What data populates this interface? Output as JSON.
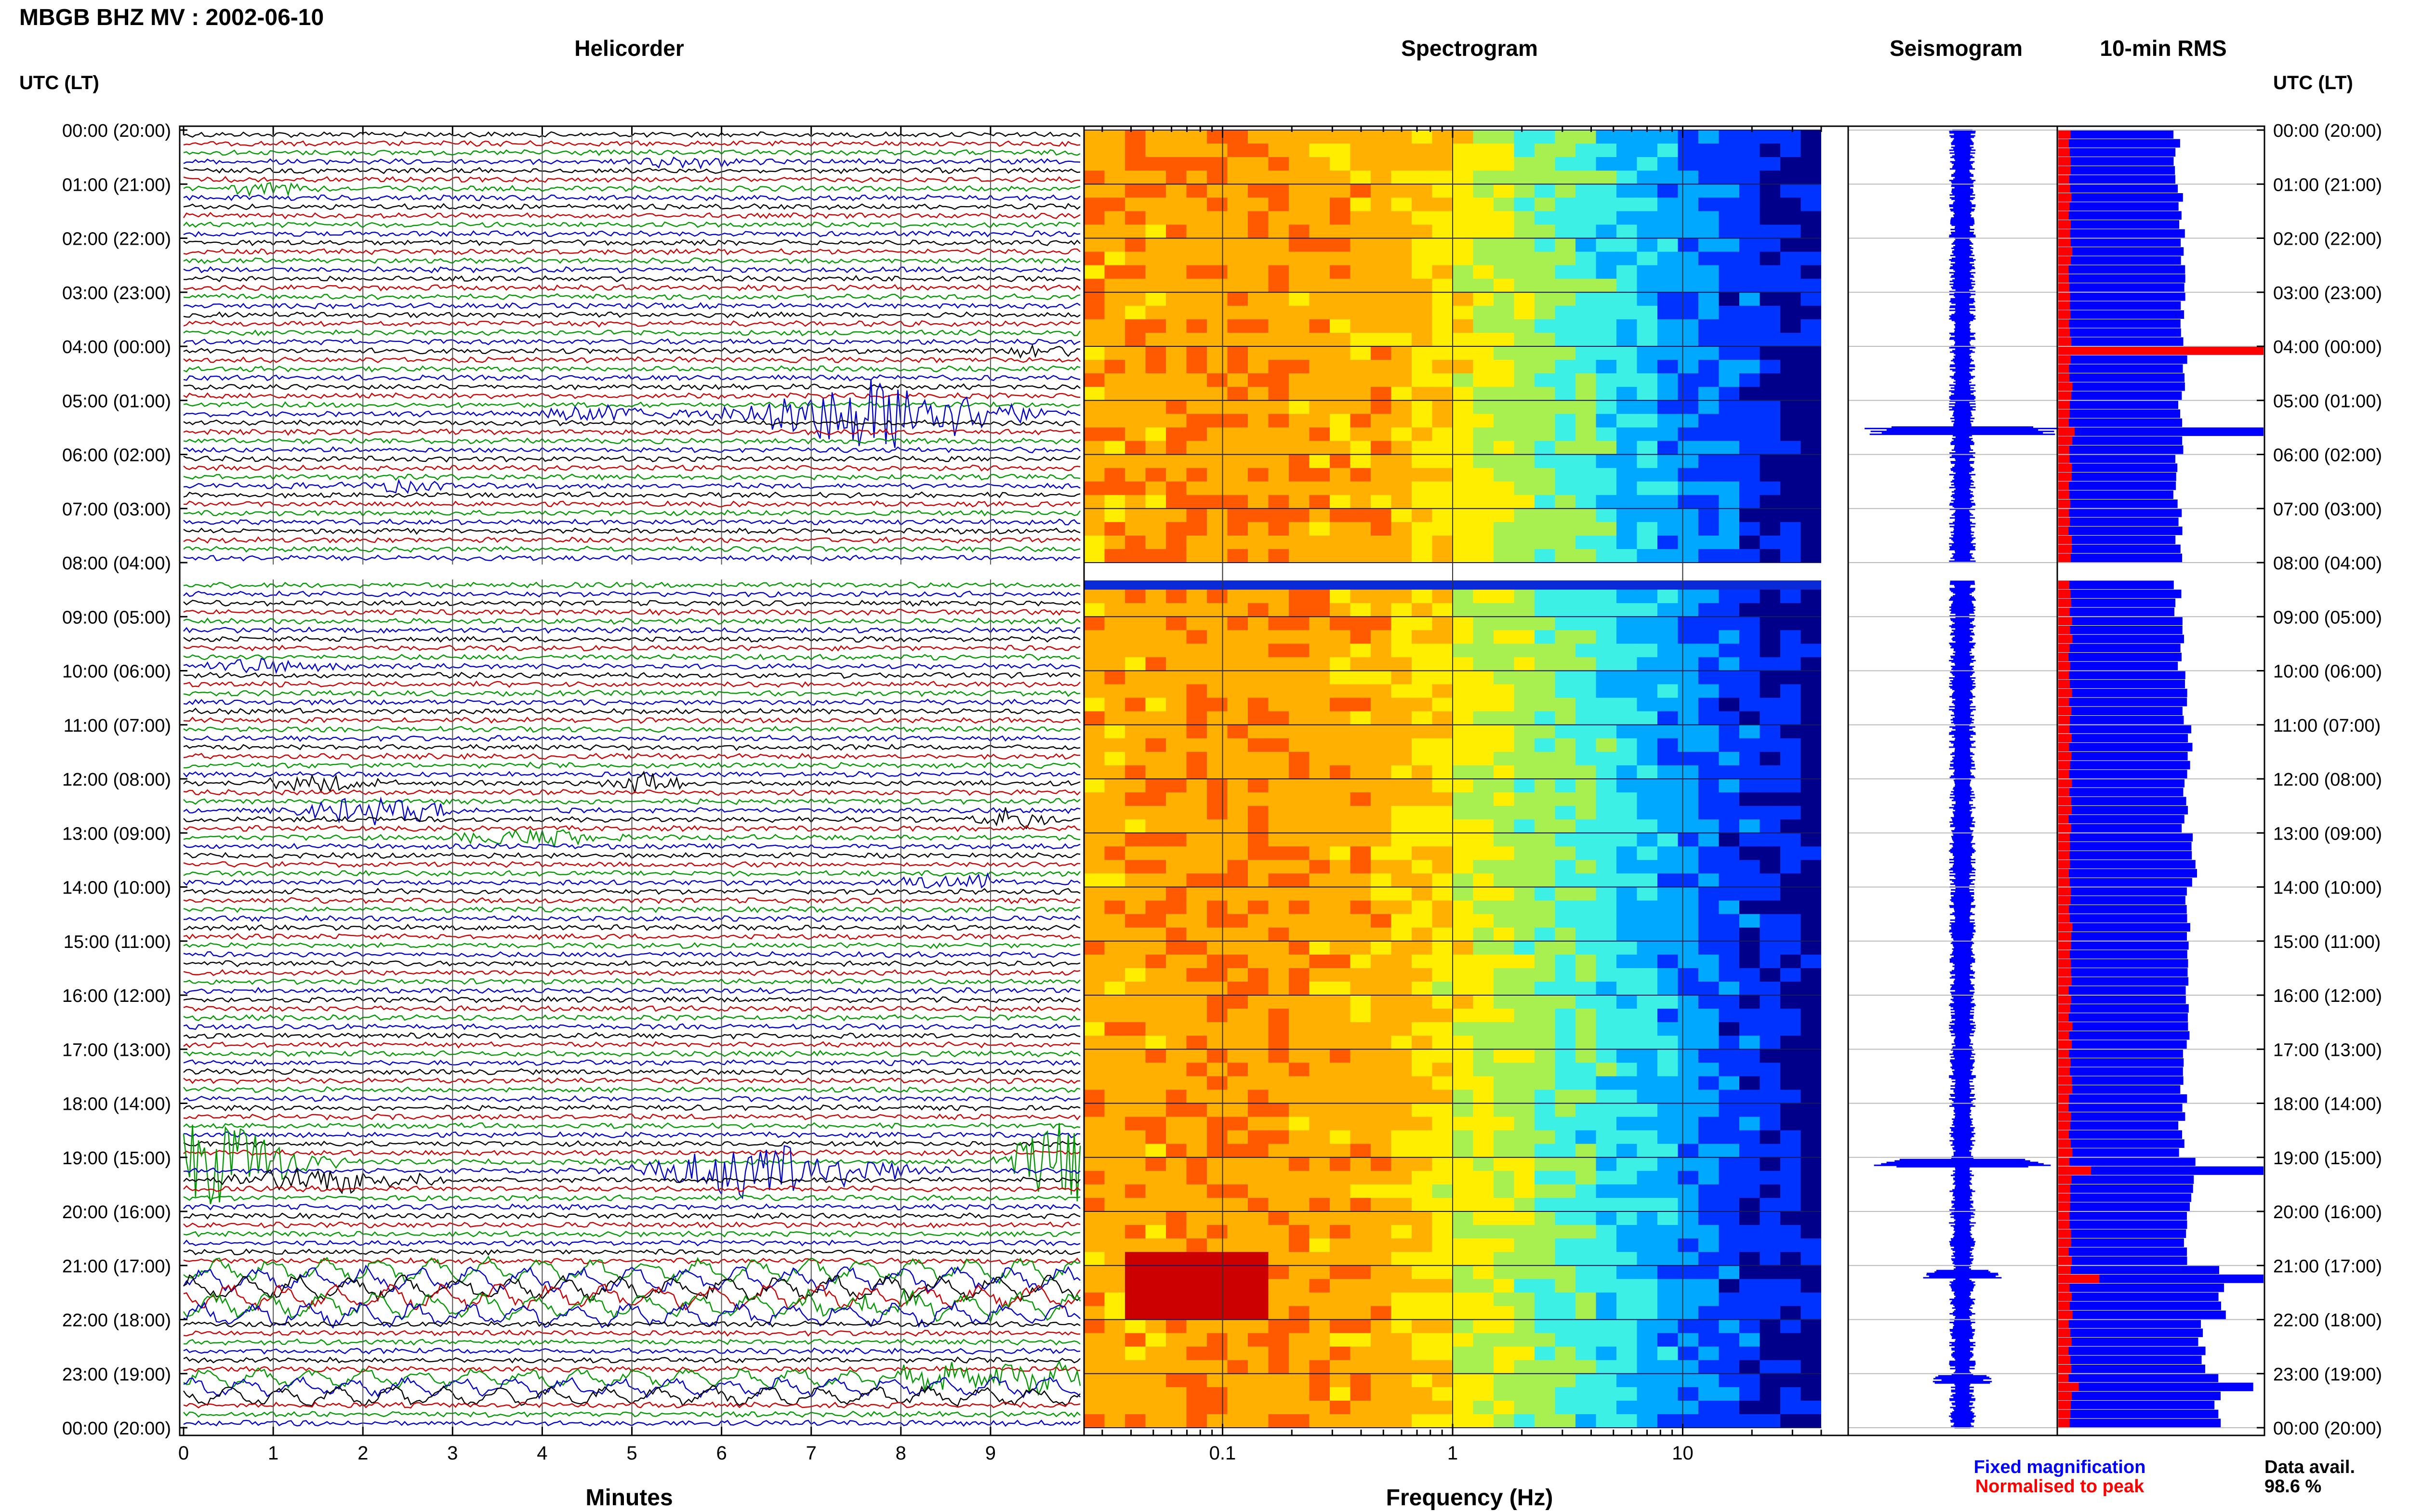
{
  "chart_data": {
    "type": "composite",
    "title": "MBGB BHZ MV : 2002-06-10",
    "time_axis_label": "UTC (LT)",
    "time_ticks": [
      "00:00 (20:00)",
      "01:00 (21:00)",
      "02:00 (22:00)",
      "03:00 (23:00)",
      "04:00 (00:00)",
      "05:00 (01:00)",
      "06:00 (02:00)",
      "07:00 (03:00)",
      "08:00 (04:00)",
      "09:00 (05:00)",
      "10:00 (06:00)",
      "11:00 (07:00)",
      "12:00 (08:00)",
      "13:00 (09:00)",
      "14:00 (10:00)",
      "15:00 (11:00)",
      "16:00 (12:00)",
      "17:00 (13:00)",
      "18:00 (14:00)",
      "19:00 (15:00)",
      "20:00 (16:00)",
      "21:00 (17:00)",
      "22:00 (18:00)",
      "23:00 (19:00)",
      "00:00 (20:00)"
    ],
    "data_gaps_hours": [
      [
        8.0,
        8.33
      ]
    ],
    "panels": {
      "helicorder": {
        "title": "Helicorder",
        "xlabel": "Minutes",
        "xticks": [
          "0",
          "1",
          "2",
          "3",
          "4",
          "5",
          "6",
          "7",
          "8",
          "9"
        ],
        "xlim": [
          0,
          10
        ],
        "trace_colors": [
          "#000000",
          "#cc0000",
          "#009900",
          "#0000cc"
        ],
        "events": [
          {
            "hour": 0.6,
            "minute": 5.5,
            "amp": 0.4,
            "width": 0.6
          },
          {
            "hour": 1.1,
            "minute": 0.8,
            "amp": 0.4,
            "width": 0.6
          },
          {
            "hour": 4.1,
            "minute": 9.4,
            "amp": 0.5,
            "width": 0.5
          },
          {
            "hour": 5.2,
            "minute": 4.6,
            "amp": 0.6,
            "width": 0.8
          },
          {
            "hour": 5.3,
            "minute": 7.5,
            "amp": 2.6,
            "width": 1.4
          },
          {
            "hour": 6.5,
            "minute": 2.2,
            "amp": 0.4,
            "width": 0.8
          },
          {
            "hour": 9.9,
            "minute": 0.8,
            "amp": 0.5,
            "width": 0.8
          },
          {
            "hour": 12.0,
            "minute": 1.4,
            "amp": 0.6,
            "width": 0.6
          },
          {
            "hour": 12.0,
            "minute": 5.1,
            "amp": 0.8,
            "width": 0.4
          },
          {
            "hour": 12.5,
            "minute": 2.0,
            "amp": 0.9,
            "width": 0.9
          },
          {
            "hour": 12.8,
            "minute": 9.2,
            "amp": 0.8,
            "width": 0.4
          },
          {
            "hour": 13.1,
            "minute": 3.7,
            "amp": 0.6,
            "width": 0.9
          },
          {
            "hour": 13.9,
            "minute": 8.5,
            "amp": 0.6,
            "width": 0.6
          },
          {
            "hour": 19.0,
            "minute": 0.1,
            "amp": 3.0,
            "width": 1.0
          },
          {
            "hour": 19.0,
            "minute": 9.7,
            "amp": 3.0,
            "width": 0.6
          },
          {
            "hour": 19.2,
            "minute": 6.3,
            "amp": 2.0,
            "width": 1.3
          },
          {
            "hour": 19.4,
            "minute": 1.3,
            "amp": 0.9,
            "width": 1.2
          },
          {
            "hour": 21.8,
            "minute": 7.5,
            "amp": 0.6,
            "width": 1.4
          },
          {
            "hour": 23.0,
            "minute": 8.8,
            "amp": 0.8,
            "width": 1.6
          }
        ],
        "noisy_hours": [
          [
            20.9,
            22.0,
            2.0
          ],
          [
            22.9,
            23.5,
            1.6
          ]
        ]
      },
      "spectrogram": {
        "title": "Spectrogram",
        "xlabel": "Frequency (Hz)",
        "xscale": "log",
        "xlim": [
          0.025,
          40
        ],
        "xticks": [
          "0.1",
          "1",
          "10"
        ],
        "colormap": [
          "#00008b",
          "#0033ff",
          "#00a8ff",
          "#3cf0e6",
          "#a8f050",
          "#ffee00",
          "#ffb000",
          "#ff5a00",
          "#cc0000"
        ],
        "energy_peak_hz": [
          0.03,
          0.4
        ],
        "hot_spot": {
          "hour": 21.2,
          "freq_hz": 0.08
        }
      },
      "seismogram": {
        "title": "Seismogram",
        "spikes": [
          {
            "hour": 5.55,
            "width": 0.95
          },
          {
            "hour": 19.1,
            "width": 1.0
          },
          {
            "hour": 21.15,
            "width": 0.4
          },
          {
            "hour": 23.1,
            "width": 0.3
          }
        ]
      },
      "rms": {
        "title": "10-min RMS",
        "legend": [
          {
            "label": "Fixed magnification",
            "color": "#0000ff"
          },
          {
            "label": "Normalised to peak",
            "color": "#ff0000"
          }
        ],
        "hourly_level_fraction": [
          0.58,
          0.6,
          0.6,
          0.61,
          0.62,
          0.6,
          0.58,
          0.59,
          0.58,
          0.6,
          0.62,
          0.64,
          0.62,
          0.66,
          0.63,
          0.62,
          0.62,
          0.61,
          0.6,
          0.65,
          0.63,
          0.8,
          0.7,
          0.78
        ],
        "spikes": [
          {
            "hour": 4.0,
            "blue": 1.0,
            "red": 1.0
          },
          {
            "hour": 5.55,
            "blue": 1.0,
            "red": 0.08
          },
          {
            "hour": 19.1,
            "blue": 1.0,
            "red": 0.16
          },
          {
            "hour": 21.2,
            "blue": 1.0,
            "red": 0.2
          },
          {
            "hour": 23.1,
            "blue": 0.95,
            "red": 0.1
          }
        ]
      }
    },
    "data_availability_label": "Data avail.",
    "data_availability": "98.6 %"
  }
}
